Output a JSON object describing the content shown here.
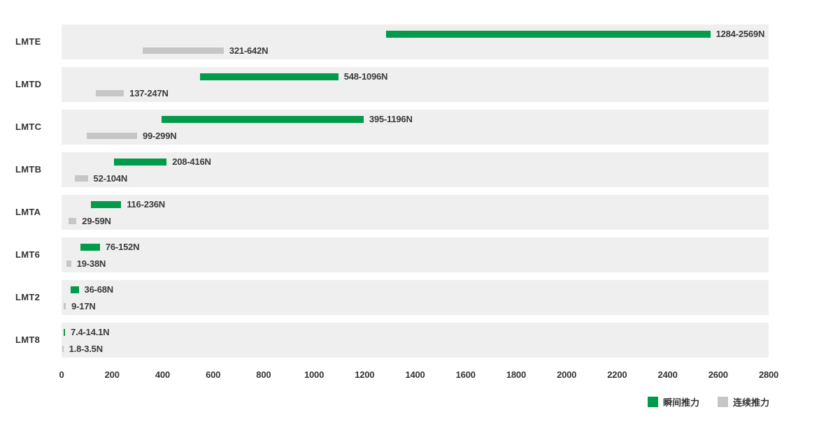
{
  "chart_data": {
    "type": "bar",
    "orientation": "horizontal-range",
    "title": "",
    "xlabel": "",
    "ylabel": "",
    "xlim": [
      0,
      2800
    ],
    "x_ticks": [
      0,
      200,
      400,
      600,
      800,
      1000,
      1200,
      1400,
      1600,
      1800,
      2000,
      2200,
      2400,
      2600,
      2800
    ],
    "grid": false,
    "legend_position": "bottom-right",
    "categories": [
      "LMTE",
      "LMTD",
      "LMTC",
      "LMTB",
      "LMTA",
      "LMT6",
      "LMT2",
      "LMT8"
    ],
    "series": [
      {
        "name": "瞬间推力",
        "color": "#019b4a",
        "ranges": [
          [
            1284,
            2569
          ],
          [
            548,
            1096
          ],
          [
            395,
            1196
          ],
          [
            208,
            416
          ],
          [
            116,
            236
          ],
          [
            76,
            152
          ],
          [
            36,
            68
          ],
          [
            7.4,
            14.1
          ]
        ],
        "labels": [
          "1284-2569N",
          "548-1096N",
          "395-1196N",
          "208-416N",
          "116-236N",
          "76-152N",
          "36-68N",
          "7.4-14.1N"
        ]
      },
      {
        "name": "连续推力",
        "color": "#c6c6c6",
        "ranges": [
          [
            321,
            642
          ],
          [
            137,
            247
          ],
          [
            99,
            299
          ],
          [
            52,
            104
          ],
          [
            29,
            59
          ],
          [
            19,
            38
          ],
          [
            9,
            17
          ],
          [
            1.8,
            3.5
          ]
        ],
        "labels": [
          "321-642N",
          "137-247N",
          "99-299N",
          "52-104N",
          "29-59N",
          "19-38N",
          "9-17N",
          "1.8-3.5N"
        ]
      }
    ]
  },
  "legend": {
    "items": [
      {
        "label": "瞬间推力",
        "color": "#019b4a"
      },
      {
        "label": "连续推力",
        "color": "#c6c6c6"
      }
    ]
  },
  "colors": {
    "band_background": "#efefef",
    "text": "#333333",
    "instant_green": "#019b4a",
    "continuous_gray": "#c6c6c6"
  }
}
